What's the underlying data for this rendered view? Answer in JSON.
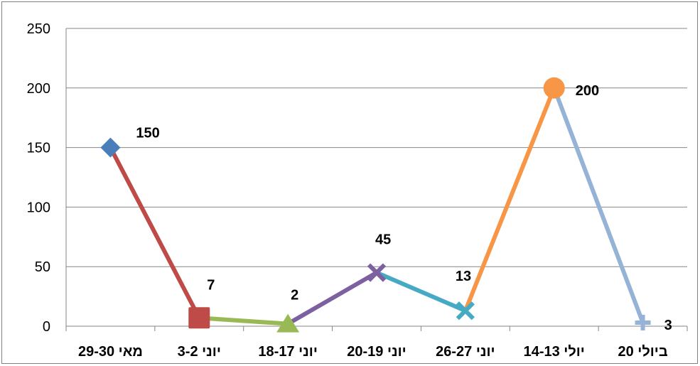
{
  "chart_data": {
    "type": "line",
    "title": "",
    "xlabel": "",
    "ylabel": "",
    "ylim": [
      0,
      250
    ],
    "yticks": [
      0,
      50,
      100,
      150,
      200,
      250
    ],
    "grid": true,
    "legend": "none",
    "categories": [
      "29-30 מאי",
      "2-3 יוני",
      "17-18 יוני",
      "19-20 יוני",
      "26-27 יוני",
      "13-14 יולי",
      "20 ביולי"
    ],
    "category_labels_display": [
      "29-30 מאי",
      "3-2 יוני",
      "18-17 יוני",
      "20-19 יוני",
      "26-27 יוני",
      "14-13 יולי",
      "20 ביולי"
    ],
    "values": [
      150,
      7,
      2,
      45,
      13,
      200,
      3
    ],
    "data_labels": [
      "150",
      "7",
      "2",
      "45",
      "13",
      "200",
      "3"
    ],
    "point_markers": [
      "diamond",
      "square",
      "triangle",
      "x",
      "x",
      "circle",
      "plus"
    ],
    "point_colors": [
      "#4a7ebb",
      "#be4b48",
      "#98b954",
      "#7d60a0",
      "#46aac5",
      "#f79646",
      "#95b3d7"
    ],
    "segment_colors": [
      "#be4b48",
      "#98b954",
      "#7d60a0",
      "#46aac5",
      "#f79646",
      "#95b3d7"
    ]
  }
}
